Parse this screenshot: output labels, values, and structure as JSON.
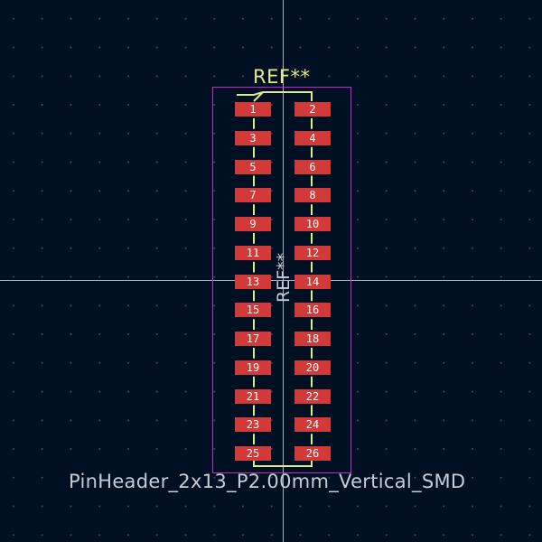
{
  "footprint": {
    "reference_top": "REF**",
    "reference_fab": "REF**",
    "name": "PinHeader_2x13_P2.00mm_Vertical_SMD"
  },
  "pads": {
    "left": [
      "1",
      "3",
      "5",
      "7",
      "9",
      "11",
      "13",
      "15",
      "17",
      "19",
      "21",
      "23",
      "25"
    ],
    "right": [
      "2",
      "4",
      "6",
      "8",
      "10",
      "12",
      "14",
      "16",
      "18",
      "20",
      "22",
      "24",
      "26"
    ]
  },
  "colors": {
    "background": "#001023",
    "pad": "#d23a3a",
    "silkscreen": "#e6e68c",
    "courtyard": "#c825c8",
    "fab_text": "#c8ccd4",
    "crosshair": "#c8ccd4"
  }
}
